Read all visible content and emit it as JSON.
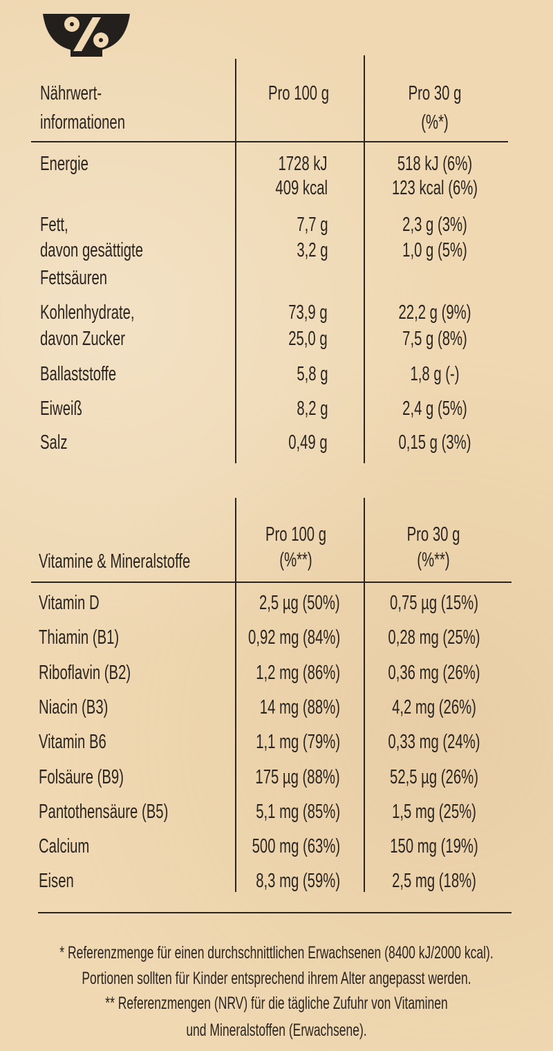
{
  "icon": "percent-bowl-icon",
  "colors": {
    "background": "#efd8b2",
    "text": "#2b2521"
  },
  "nutrition": {
    "header": {
      "label_line1": "Nährwert-",
      "label_line2": "informationen",
      "col1": "Pro 100 g",
      "col2_line1": "Pro 30 g",
      "col2_line2": "(%*)"
    },
    "rows": [
      {
        "label": [
          "Energie"
        ],
        "per100": [
          "1728 kJ",
          "409 kcal"
        ],
        "per30": [
          "518 kJ (6%)",
          "123 kcal (6%)"
        ]
      },
      {
        "label": [
          "Fett,",
          "davon gesättigte",
          "Fettsäuren"
        ],
        "per100": [
          "7,7 g",
          "3,2 g"
        ],
        "per30": [
          "2,3 g (3%)",
          "1,0 g (5%)"
        ]
      },
      {
        "label": [
          "Kohlenhydrate,",
          "davon Zucker"
        ],
        "per100": [
          "73,9 g",
          "25,0 g"
        ],
        "per30": [
          "22,2 g (9%)",
          "7,5 g (8%)"
        ]
      },
      {
        "label": [
          "Ballaststoffe"
        ],
        "per100": [
          "5,8 g"
        ],
        "per30": [
          "1,8 g (-)"
        ]
      },
      {
        "label": [
          "Eiweiß"
        ],
        "per100": [
          "8,2 g"
        ],
        "per30": [
          "2,4 g (5%)"
        ]
      },
      {
        "label": [
          "Salz"
        ],
        "per100": [
          "0,49 g"
        ],
        "per30": [
          "0,15 g (3%)"
        ]
      }
    ]
  },
  "vitamins": {
    "header": {
      "label": "Vitamine & Mineralstoffe",
      "col1_line1": "Pro 100 g",
      "col1_line2": "(%**)",
      "col2_line1": "Pro 30 g",
      "col2_line2": "(%**)"
    },
    "rows": [
      {
        "label": "Vitamin D",
        "per100": "2,5 µg (50%)",
        "per30": "0,75 µg (15%)"
      },
      {
        "label": "Thiamin (B1)",
        "per100": "0,92 mg (84%)",
        "per30": "0,28 mg (25%)"
      },
      {
        "label": "Riboflavin (B2)",
        "per100": "1,2 mg (86%)",
        "per30": "0,36 mg (26%)"
      },
      {
        "label": "Niacin (B3)",
        "per100": "14 mg (88%)",
        "per30": "4,2 mg (26%)"
      },
      {
        "label": "Vitamin B6",
        "per100": "1,1 mg (79%)",
        "per30": "0,33 mg (24%)"
      },
      {
        "label": "Folsäure (B9)",
        "per100": "175 µg (88%)",
        "per30": "52,5 µg (26%)"
      },
      {
        "label": "Pantothensäure (B5)",
        "per100": "5,1 mg (85%)",
        "per30": "1,5 mg (25%)"
      },
      {
        "label": "Calcium",
        "per100": "500 mg (63%)",
        "per30": "150 mg (19%)"
      },
      {
        "label": "Eisen",
        "per100": "8,3 mg (59%)",
        "per30": "2,5 mg (18%)"
      }
    ]
  },
  "footnotes": [
    "* Referenzmenge für einen durchschnittlichen Erwachsenen (8400 kJ/2000 kcal).",
    "Portionen sollten für Kinder entsprechend ihrem Alter angepasst werden.",
    "** Referenzmengen (NRV) für die tägliche Zufuhr von Vitaminen",
    "und Mineralstoffen (Erwachsene)."
  ]
}
